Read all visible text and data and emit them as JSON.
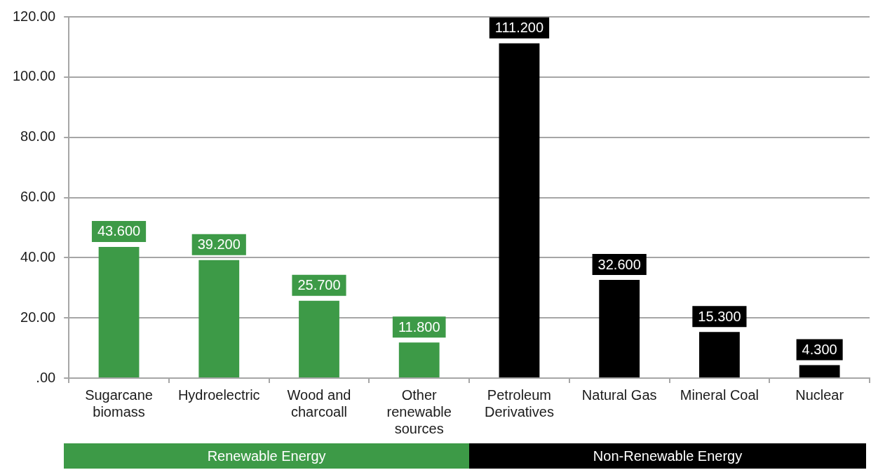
{
  "chart_data": {
    "type": "bar",
    "categories": [
      "Sugarcane biomass",
      "Hydroelectric",
      "Wood and charcoall",
      "Other renewable sources",
      "Petroleum Derivatives",
      "Natural Gas",
      "Mineral Coal",
      "Nuclear"
    ],
    "values": [
      43.6,
      39.2,
      25.7,
      11.8,
      111.2,
      32.6,
      15.3,
      4.3
    ],
    "colors": [
      "#3d9a47",
      "#3d9a47",
      "#3d9a47",
      "#3d9a47",
      "#000000",
      "#000000",
      "#000000",
      "#000000"
    ],
    "value_labels": [
      "43.600",
      "39.200",
      "25.700",
      "11.800",
      "111.200",
      "32.600",
      "15.300",
      "4.300"
    ],
    "ylim": [
      0,
      120
    ],
    "yticks": [
      {
        "value": 0,
        "label": ".00"
      },
      {
        "value": 20,
        "label": "20.00"
      },
      {
        "value": 40,
        "label": "40.00"
      },
      {
        "value": 60,
        "label": "60.00"
      },
      {
        "value": 80,
        "label": "80.00"
      },
      {
        "value": 100,
        "label": "100.00"
      },
      {
        "value": 120,
        "label": "120.00"
      }
    ],
    "grid": "y",
    "annotations": [
      "Renewable Energy",
      "Non-Renewable Energy"
    ]
  }
}
